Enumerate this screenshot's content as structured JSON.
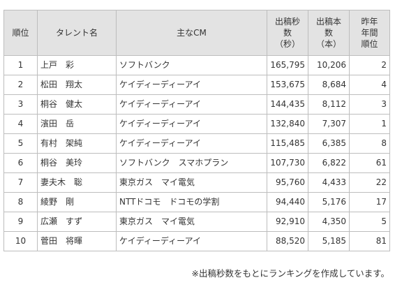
{
  "table": {
    "headers": {
      "rank": "順位",
      "talent": "タレント名",
      "cm": "主なCM",
      "seconds_lines": [
        "出稿秒",
        "数",
        "（秒）"
      ],
      "count_lines": [
        "出稿本",
        "数",
        "（本）"
      ],
      "prev_lines": [
        "昨年",
        "年間",
        "順位"
      ]
    },
    "rows": [
      {
        "rank": "1",
        "name": "上戸　彩",
        "cm": "ソフトバンク",
        "seconds": "165,795",
        "count": "10,206",
        "prev": "2"
      },
      {
        "rank": "2",
        "name": "松田　翔太",
        "cm": "ケイディーディーアイ",
        "seconds": "153,675",
        "count": "8,684",
        "prev": "4"
      },
      {
        "rank": "3",
        "name": "桐谷　健太",
        "cm": "ケイディーディーアイ",
        "seconds": "144,435",
        "count": "8,112",
        "prev": "3"
      },
      {
        "rank": "4",
        "name": "濱田　岳",
        "cm": "ケイディーディーアイ",
        "seconds": "132,840",
        "count": "7,307",
        "prev": "1"
      },
      {
        "rank": "5",
        "name": "有村　架純",
        "cm": "ケイディーディーアイ",
        "seconds": "115,485",
        "count": "6,385",
        "prev": "8"
      },
      {
        "rank": "6",
        "name": "桐谷　美玲",
        "cm": "ソフトバンク　スマホプラン",
        "seconds": "107,730",
        "count": "6,822",
        "prev": "61"
      },
      {
        "rank": "7",
        "name": "妻夫木　聡",
        "cm": "東京ガス　マイ電気",
        "seconds": "95,760",
        "count": "4,433",
        "prev": "22"
      },
      {
        "rank": "8",
        "name": "綾野　剛",
        "cm": "NTTドコモ　ドコモの学割",
        "seconds": "94,440",
        "count": "5,176",
        "prev": "17"
      },
      {
        "rank": "9",
        "name": "広瀬　すず",
        "cm": "東京ガス　マイ電気",
        "seconds": "92,910",
        "count": "4,350",
        "prev": "5"
      },
      {
        "rank": "10",
        "name": "菅田　将暉",
        "cm": "ケイディーディーアイ",
        "seconds": "88,520",
        "count": "5,185",
        "prev": "81"
      }
    ]
  },
  "footnote": "※出稿秒数をもとにランキングを作成しています。"
}
